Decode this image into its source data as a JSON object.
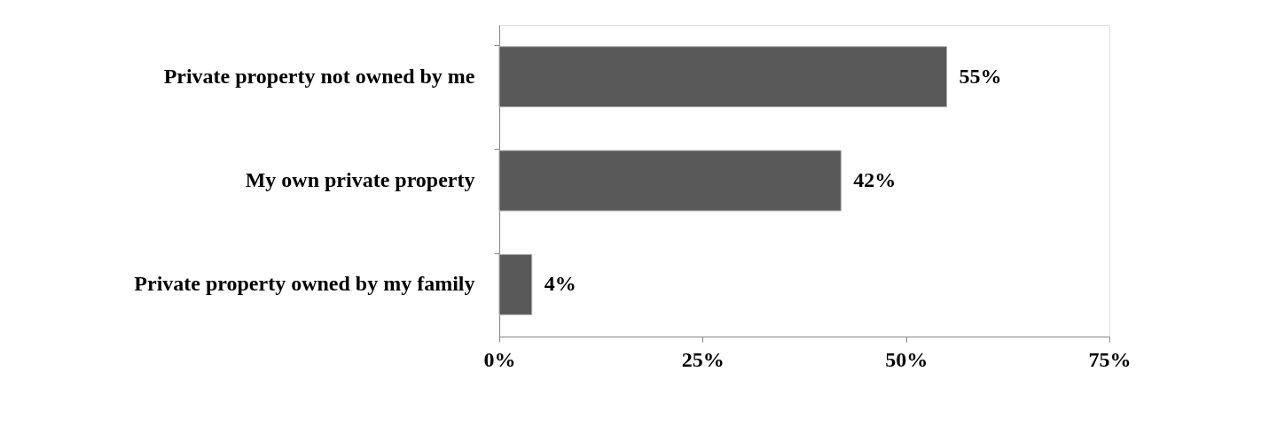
{
  "chart_data": {
    "type": "bar",
    "orientation": "horizontal",
    "categories": [
      "Private property not owned by me",
      "My own private property",
      "Private property owned by my family"
    ],
    "values": [
      55,
      42,
      4
    ],
    "value_labels": [
      "55%",
      "42%",
      "4%"
    ],
    "color": "#595959",
    "xlim": [
      0,
      75
    ],
    "xticks": [
      {
        "value": 0,
        "label": "0%"
      },
      {
        "value": 25,
        "label": "25%"
      },
      {
        "value": 50,
        "label": "50%"
      },
      {
        "value": 75,
        "label": "75%"
      }
    ],
    "grid": false
  }
}
